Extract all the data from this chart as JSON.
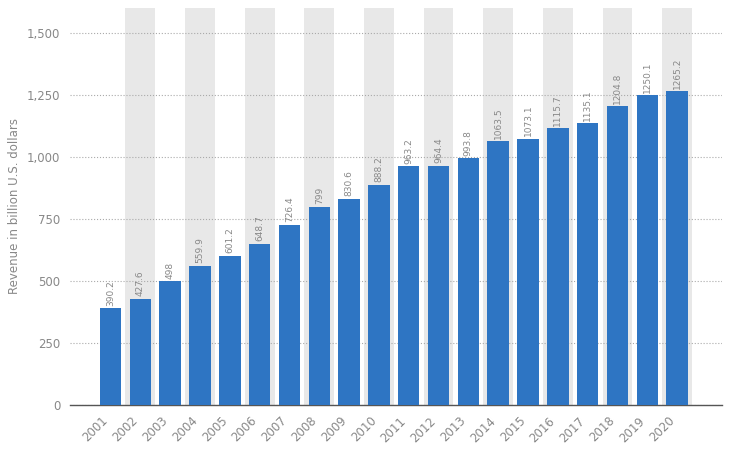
{
  "years": [
    2001,
    2002,
    2003,
    2004,
    2005,
    2006,
    2007,
    2008,
    2009,
    2010,
    2011,
    2012,
    2013,
    2014,
    2015,
    2016,
    2017,
    2018,
    2019,
    2020
  ],
  "values": [
    390.2,
    427.6,
    498,
    559.9,
    601.2,
    648.7,
    726.4,
    799,
    830.6,
    888.2,
    963.2,
    964.4,
    993.8,
    1063.5,
    1073.1,
    1115.7,
    1135.1,
    1204.8,
    1250.1,
    1265.2
  ],
  "bar_color": "#2e75c3",
  "background_color": "#ffffff",
  "band_color": "#e8e8e8",
  "ylabel": "Revenue in billion U.S. dollars",
  "ylim": [
    0,
    1600
  ],
  "yticks": [
    0,
    250,
    500,
    750,
    1000,
    1250,
    1500
  ],
  "grid_color": "#aaaaaa",
  "label_color": "#888888",
  "value_fontsize": 6.5,
  "axis_fontsize": 8.5,
  "tick_label_fontsize": 8.5
}
